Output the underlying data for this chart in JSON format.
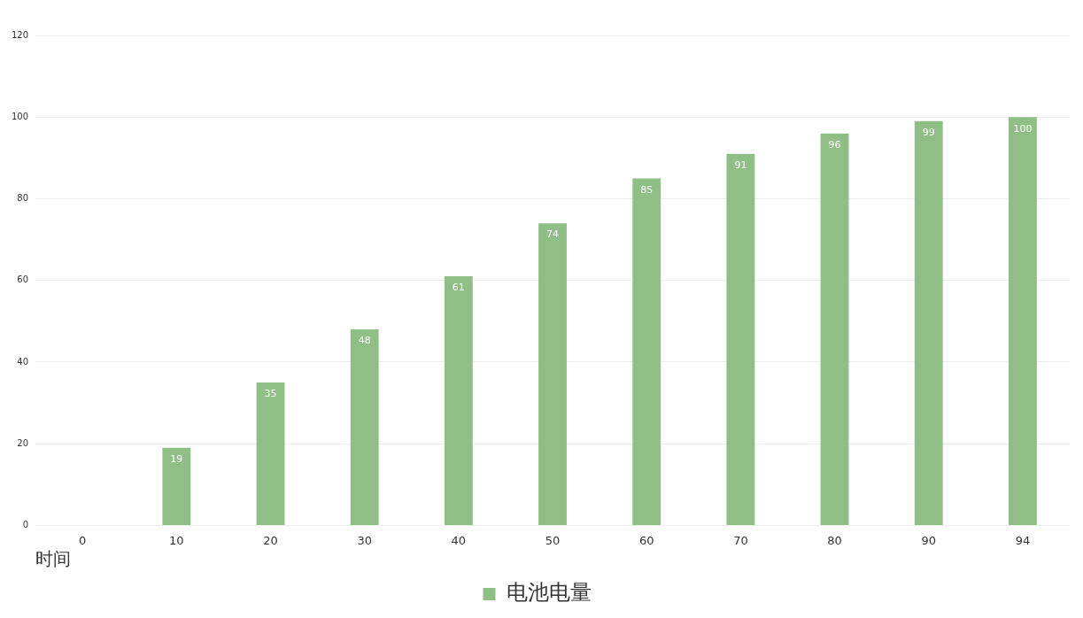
{
  "chart_data": {
    "type": "bar",
    "xlabel": "时间",
    "categories": [
      "0",
      "10",
      "20",
      "30",
      "40",
      "50",
      "60",
      "70",
      "80",
      "90",
      "94"
    ],
    "series": [
      {
        "name": "电池电量",
        "color": "#8fbf84",
        "values": [
          0,
          19,
          35,
          48,
          61,
          74,
          85,
          91,
          96,
          99,
          100
        ],
        "value_labels": [
          null,
          "19",
          "35",
          "48",
          "61",
          "74",
          "85",
          "91",
          "96",
          "99",
          "100"
        ]
      }
    ],
    "ylim": [
      0,
      120
    ],
    "yticks": [
      0,
      20,
      40,
      60,
      80,
      100,
      120
    ],
    "grid": "y",
    "legend": "bottom"
  }
}
